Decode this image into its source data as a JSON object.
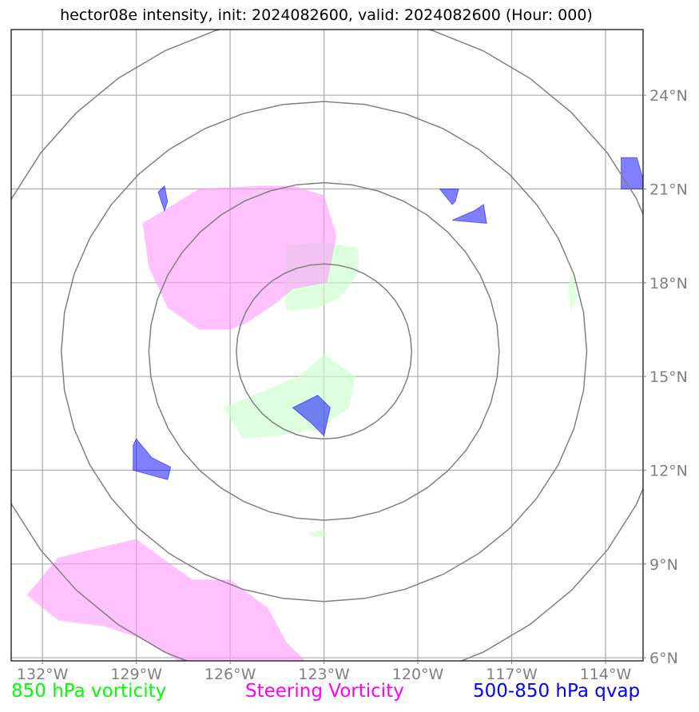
{
  "title": "hector08e intensity, init: 2024082600, valid: 2024082600 (Hour: 000)",
  "map": {
    "lon_range": [
      -133,
      -112.8
    ],
    "lat_range": [
      5.9,
      26.1
    ],
    "lon_ticks": [
      {
        "value": -132,
        "label": "132°W"
      },
      {
        "value": -129,
        "label": "129°W"
      },
      {
        "value": -126,
        "label": "126°W"
      },
      {
        "value": -123,
        "label": "123°W"
      },
      {
        "value": -120,
        "label": "120°W"
      },
      {
        "value": -117,
        "label": "117°W"
      },
      {
        "value": -114,
        "label": "114°W"
      }
    ],
    "lat_ticks": [
      {
        "value": 6,
        "label": "6°N"
      },
      {
        "value": 9,
        "label": "9°N"
      },
      {
        "value": 12,
        "label": "12°N"
      },
      {
        "value": 15,
        "label": "15°N"
      },
      {
        "value": 18,
        "label": "18°N"
      },
      {
        "value": 21,
        "label": "21°N"
      },
      {
        "value": 24,
        "label": "24°N"
      }
    ],
    "gridlines": true,
    "storm_center": {
      "lon": -123,
      "lat": 15.8
    },
    "range_rings": [
      {
        "lat_radius": 2.8,
        "lon_radius": 2.8
      },
      {
        "lat_radius": 5.4,
        "lon_radius": 5.6
      },
      {
        "lat_radius": 8.0,
        "lon_radius": 8.4
      },
      {
        "lat_radius": 10.8,
        "lon_radius": 11.2
      }
    ],
    "ring_color": "#808080"
  },
  "fields": {
    "vorticity_850": {
      "color": "#ccffcc",
      "polygons": [
        [
          [
            -124.2,
            19.2
          ],
          [
            -123.0,
            19.3
          ],
          [
            -121.9,
            19.1
          ],
          [
            -121.9,
            18.3
          ],
          [
            -122.5,
            17.5
          ],
          [
            -123.2,
            17.2
          ],
          [
            -124.2,
            17.1
          ],
          [
            -124.3,
            18.0
          ]
        ],
        [
          [
            -123.0,
            15.7
          ],
          [
            -122.0,
            15.0
          ],
          [
            -122.2,
            14.0
          ],
          [
            -123.2,
            13.3
          ],
          [
            -124.5,
            13.1
          ],
          [
            -125.6,
            13.0
          ],
          [
            -126.2,
            14.0
          ],
          [
            -124.8,
            14.6
          ],
          [
            -123.8,
            15.0
          ]
        ],
        [
          [
            -123.5,
            10.0
          ],
          [
            -123.0,
            10.1
          ],
          [
            -122.9,
            9.9
          ],
          [
            -123.3,
            9.85
          ]
        ],
        [
          [
            -115.1,
            18.4
          ],
          [
            -114.9,
            17.5
          ],
          [
            -115.1,
            17.1
          ],
          [
            -115.2,
            17.8
          ]
        ]
      ]
    },
    "steering_vorticity": {
      "color": "#ff99ff",
      "polygons": [
        [
          [
            -127.0,
            21.0
          ],
          [
            -125.0,
            21.1
          ],
          [
            -124.0,
            21.1
          ],
          [
            -123.0,
            20.8
          ],
          [
            -122.6,
            19.5
          ],
          [
            -122.9,
            18.0
          ],
          [
            -124.0,
            17.8
          ],
          [
            -124.6,
            17.3
          ],
          [
            -125.5,
            16.7
          ],
          [
            -126.0,
            16.5
          ],
          [
            -127.0,
            16.5
          ],
          [
            -128.0,
            17.2
          ],
          [
            -128.6,
            18.5
          ],
          [
            -128.8,
            19.9
          ]
        ],
        [
          [
            -132.5,
            8.0
          ],
          [
            -131.5,
            9.2
          ],
          [
            -129.0,
            9.8
          ],
          [
            -128.2,
            9.2
          ],
          [
            -127.2,
            8.5
          ],
          [
            -126.0,
            8.5
          ],
          [
            -124.8,
            7.6
          ],
          [
            -124.2,
            6.5
          ],
          [
            -123.5,
            5.8
          ],
          [
            -127.5,
            5.8
          ],
          [
            -128.8,
            6.6
          ],
          [
            -130.0,
            7.0
          ],
          [
            -131.5,
            7.2
          ]
        ]
      ]
    },
    "qvap_500_850": {
      "color": "#0000ff",
      "polygons": [
        [
          [
            -129.0,
            13.0
          ],
          [
            -128.5,
            12.4
          ],
          [
            -127.9,
            12.1
          ],
          [
            -128.0,
            11.7
          ],
          [
            -129.1,
            12.0
          ],
          [
            -129.1,
            12.8
          ]
        ],
        [
          [
            -124.0,
            14.0
          ],
          [
            -123.2,
            14.4
          ],
          [
            -122.8,
            14.0
          ],
          [
            -123.0,
            13.1
          ],
          [
            -123.4,
            13.5
          ]
        ],
        [
          [
            -128.1,
            21.1
          ],
          [
            -128.0,
            20.6
          ],
          [
            -128.1,
            20.3
          ],
          [
            -128.3,
            20.9
          ]
        ],
        [
          [
            -119.3,
            21.0
          ],
          [
            -118.7,
            21.0
          ],
          [
            -118.8,
            20.6
          ],
          [
            -118.9,
            20.5
          ]
        ],
        [
          [
            -118.2,
            20.3
          ],
          [
            -117.9,
            20.5
          ],
          [
            -117.8,
            19.9
          ],
          [
            -118.9,
            20.0
          ]
        ],
        [
          [
            -113.5,
            22.0
          ],
          [
            -113.0,
            22.0
          ],
          [
            -112.7,
            21.0
          ],
          [
            -113.5,
            21.0
          ]
        ]
      ]
    },
    "overlap_color": "#bb44cc"
  },
  "legend": {
    "vorticity_850": {
      "label": "850 hPa vorticity",
      "color": "#00ff00"
    },
    "steering_vorticity": {
      "label": "Steering Vorticity",
      "color": "#ff00ff"
    },
    "qvap_500_850": {
      "label": "500-850 hPa qvap",
      "color": "#0000ff"
    }
  }
}
